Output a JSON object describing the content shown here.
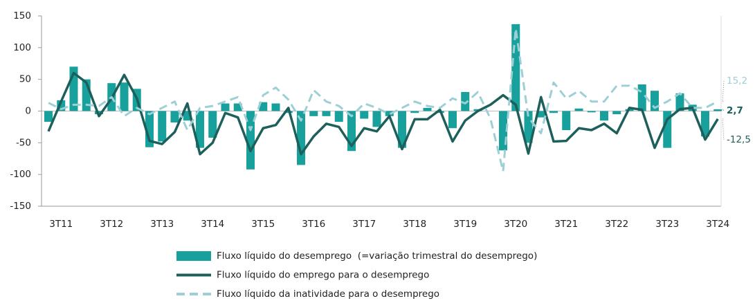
{
  "chart_data": {
    "type": "bar",
    "categories": [
      null,
      "3T11",
      null,
      null,
      null,
      "3T12",
      null,
      null,
      null,
      "3T13",
      null,
      null,
      null,
      "3T14",
      null,
      null,
      null,
      "3T15",
      null,
      null,
      null,
      "3T16",
      null,
      null,
      null,
      "3T17",
      null,
      null,
      null,
      "3T18",
      null,
      null,
      null,
      "3T19",
      null,
      null,
      null,
      "3T20",
      null,
      null,
      null,
      "3T21",
      null,
      null,
      null,
      "3T22",
      null,
      null,
      null,
      "3T23",
      null,
      null,
      null,
      "3T24"
    ],
    "ylim": [
      -150,
      150
    ],
    "yticks": [
      -150,
      -100,
      -50,
      0,
      50,
      100,
      150
    ],
    "series": [
      {
        "name": "Fluxo líquido do desemprego  (=variação trimestral do desemprego)",
        "type": "bar",
        "color": "#17a09c",
        "values": [
          -17,
          17,
          70,
          50,
          -5,
          44,
          45,
          35,
          -57,
          -48,
          -18,
          -15,
          -58,
          -42,
          12,
          12,
          -92,
          14,
          12,
          -3,
          -85,
          -8,
          -8,
          -17,
          -63,
          -12,
          -25,
          -8,
          -58,
          -3,
          5,
          -3,
          -27,
          30,
          3,
          0,
          -62,
          137,
          -50,
          -10,
          -3,
          -30,
          4,
          -2,
          -15,
          -5,
          3,
          42,
          32,
          -58,
          28,
          10,
          -40,
          2.7
        ],
        "value_labels": [
          null,
          null,
          null,
          null,
          null,
          null,
          null,
          null,
          null,
          null,
          null,
          null,
          null,
          null,
          null,
          null,
          null,
          null,
          null,
          null,
          null,
          null,
          null,
          null,
          null,
          null,
          null,
          null,
          null,
          null,
          null,
          null,
          null,
          null,
          null,
          null,
          null,
          null,
          null,
          null,
          null,
          null,
          null,
          null,
          null,
          null,
          null,
          null,
          null,
          null,
          null,
          null,
          null,
          "2,7"
        ]
      },
      {
        "name": "Fluxo líquido do emprego para o desemprego",
        "type": "line",
        "color": "#1d5f5b",
        "values": [
          -32,
          15,
          60,
          45,
          -8,
          20,
          57,
          20,
          -47,
          -52,
          -33,
          12,
          -68,
          -50,
          -3,
          -10,
          -63,
          -27,
          -22,
          5,
          -68,
          -40,
          -20,
          -25,
          -55,
          -27,
          -32,
          -8,
          -60,
          -13,
          -13,
          2,
          -48,
          -15,
          0,
          10,
          25,
          10,
          -67,
          22,
          -48,
          -47,
          -27,
          -30,
          -20,
          -35,
          5,
          2,
          -58,
          -13,
          3,
          5,
          -45,
          -12.5
        ],
        "value_labels": [
          null,
          null,
          null,
          null,
          null,
          null,
          null,
          null,
          null,
          null,
          null,
          null,
          null,
          null,
          null,
          null,
          null,
          null,
          null,
          null,
          null,
          null,
          null,
          null,
          null,
          null,
          null,
          null,
          null,
          null,
          null,
          null,
          null,
          null,
          null,
          null,
          null,
          null,
          null,
          null,
          null,
          null,
          null,
          null,
          null,
          null,
          null,
          null,
          null,
          null,
          null,
          null,
          null,
          "-12,5"
        ]
      },
      {
        "name": "Fluxo líquido da inatividade para o desemprego",
        "type": "line",
        "dashed": true,
        "color": "#9dcfd6",
        "values": [
          13,
          3,
          10,
          10,
          8,
          22,
          -8,
          5,
          -5,
          5,
          15,
          -30,
          5,
          8,
          15,
          22,
          -30,
          25,
          37,
          18,
          -15,
          33,
          15,
          8,
          -8,
          12,
          5,
          -5,
          5,
          15,
          8,
          5,
          20,
          12,
          30,
          -12,
          -95,
          130,
          -10,
          -35,
          45,
          20,
          32,
          15,
          15,
          40,
          40,
          30,
          5,
          15,
          28,
          5,
          5,
          15.2
        ],
        "value_labels": [
          null,
          null,
          null,
          null,
          null,
          null,
          null,
          null,
          null,
          null,
          null,
          null,
          null,
          null,
          null,
          null,
          null,
          null,
          null,
          null,
          null,
          null,
          null,
          null,
          null,
          null,
          null,
          null,
          null,
          null,
          null,
          null,
          null,
          null,
          null,
          null,
          null,
          null,
          null,
          null,
          null,
          null,
          null,
          null,
          null,
          null,
          null,
          null,
          null,
          null,
          null,
          null,
          null,
          "15,2"
        ]
      }
    ]
  }
}
